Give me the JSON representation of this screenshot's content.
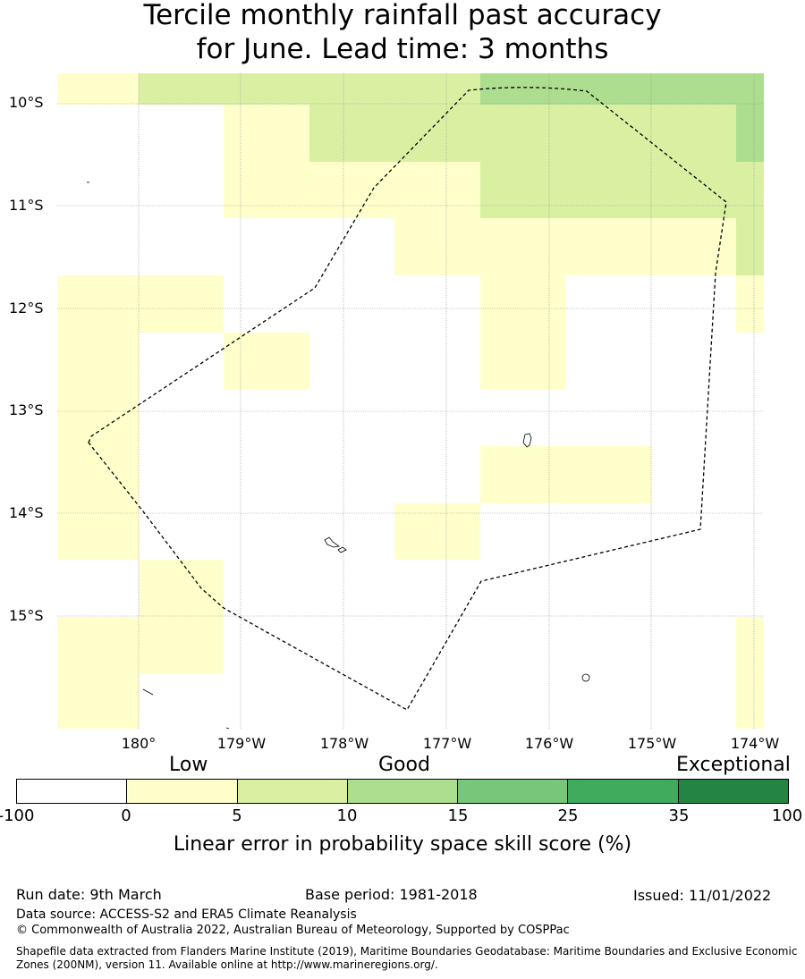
{
  "title": {
    "line1": "Tercile monthly rainfall past accuracy",
    "line2": "for June. Lead time: 3 months"
  },
  "map": {
    "lat_labels": [
      "10°S",
      "11°S",
      "12°S",
      "13°S",
      "14°S",
      "15°S"
    ],
    "lon_labels": [
      "180°",
      "179°W",
      "178°W",
      "177°W",
      "176°W",
      "175°W",
      "174°W"
    ],
    "colors": {
      "low": "#ffffcc",
      "good": "#d9f0a3",
      "high": "#addd8e",
      "boundary": "#000000",
      "grid": "#999999"
    }
  },
  "colorbar": {
    "categories": [
      "Low",
      "Good",
      "Exceptional"
    ],
    "ticks": [
      "-100",
      "0",
      "5",
      "10",
      "15",
      "25",
      "35",
      "100"
    ],
    "colors": [
      "#ffffff",
      "#ffffcc",
      "#d9f0a3",
      "#addd8e",
      "#78c679",
      "#41ab5d",
      "#238443"
    ],
    "label": "Linear error in probability space skill score (%)"
  },
  "footer": {
    "run_date": "Run date: 9th March",
    "base_period": "Base period: 1981-2018",
    "issued": "Issued: 11/01/2022",
    "data_source": "Data source: ACCESS-S2 and ERA5 Climate Reanalysis",
    "copyright": "© Commonwealth of Australia 2022, Australian Bureau of Meteorology, Supported by COSPPac",
    "shapefile": "Shapefile data extracted from Flanders Marine Institute (2019), Maritime Boundaries Geodatabase: Maritime Boundaries and Exclusive Economic Zones (200NM), version 11. Available online at http://www.marineregions.org/."
  }
}
